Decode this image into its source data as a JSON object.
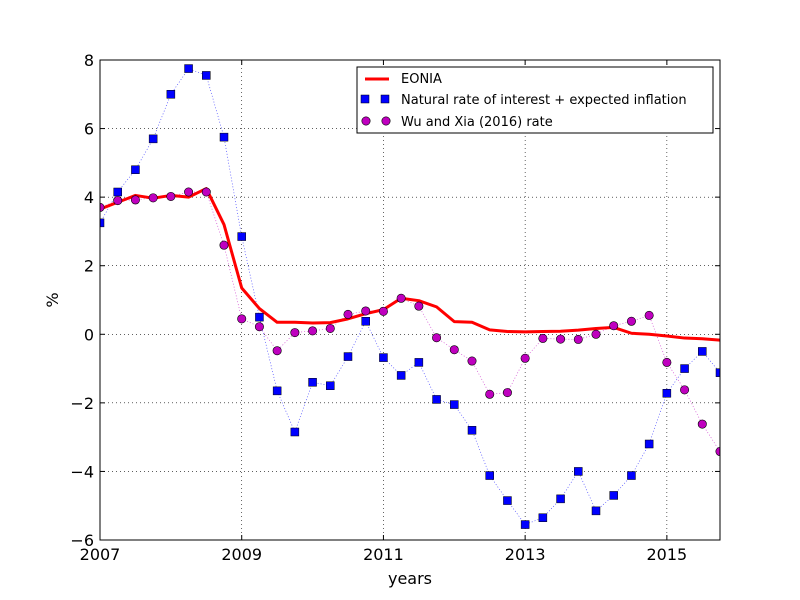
{
  "chart_data": {
    "type": "line",
    "title": "",
    "xlabel": "years",
    "ylabel": "%",
    "xlim": [
      2007,
      2015.75
    ],
    "ylim": [
      -6,
      8
    ],
    "grid": true,
    "x_ticks": [
      2007,
      2009,
      2011,
      2013,
      2015
    ],
    "x_tick_labels": [
      "2007",
      "2009",
      "2011",
      "2013",
      "2015"
    ],
    "y_ticks": [
      -6,
      -4,
      -2,
      0,
      2,
      4,
      6,
      8
    ],
    "y_tick_labels": [
      "−6",
      "−4",
      "−2",
      "0",
      "2",
      "4",
      "6",
      "8"
    ],
    "legend_position": "top-right",
    "series": [
      {
        "name": "EONIA",
        "style": "line",
        "color": "#ff0000",
        "x": [
          2007,
          2007.25,
          2007.5,
          2007.75,
          2008,
          2008.25,
          2008.5,
          2008.75,
          2009,
          2009.25,
          2009.5,
          2009.75,
          2010,
          2010.25,
          2010.5,
          2010.75,
          2011,
          2011.25,
          2011.5,
          2011.75,
          2012,
          2012.25,
          2012.5,
          2012.75,
          2013,
          2013.25,
          2013.5,
          2013.75,
          2014,
          2014.25,
          2014.5,
          2014.75,
          2015,
          2015.25,
          2015.5,
          2015.75
        ],
        "values": [
          3.65,
          3.85,
          4.05,
          3.97,
          4.05,
          4.0,
          4.25,
          3.2,
          1.35,
          0.75,
          0.35,
          0.35,
          0.33,
          0.34,
          0.45,
          0.6,
          0.72,
          1.05,
          0.98,
          0.8,
          0.37,
          0.35,
          0.13,
          0.08,
          0.07,
          0.08,
          0.09,
          0.12,
          0.17,
          0.2,
          0.03,
          0.0,
          -0.05,
          -0.11,
          -0.13,
          -0.17
        ]
      },
      {
        "name": "Natural rate of interest + expected inflation",
        "style": "square-markers",
        "color": "#0000ff",
        "x": [
          2007,
          2007.25,
          2007.5,
          2007.75,
          2008,
          2008.25,
          2008.5,
          2008.75,
          2009,
          2009.25,
          2009.5,
          2009.75,
          2010,
          2010.25,
          2010.5,
          2010.75,
          2011,
          2011.25,
          2011.5,
          2011.75,
          2012,
          2012.25,
          2012.5,
          2012.75,
          2013,
          2013.25,
          2013.5,
          2013.75,
          2014,
          2014.25,
          2014.5,
          2014.75,
          2015,
          2015.25,
          2015.5,
          2015.75
        ],
        "values": [
          3.25,
          4.15,
          4.8,
          5.7,
          7.0,
          7.75,
          7.55,
          5.75,
          2.85,
          0.5,
          -1.65,
          -2.85,
          -1.4,
          -1.5,
          -0.65,
          0.38,
          -0.68,
          -1.2,
          -0.82,
          -1.9,
          -2.05,
          -2.8,
          -4.12,
          -4.85,
          -5.55,
          -5.35,
          -4.8,
          -4.0,
          -5.15,
          -4.7,
          -4.12,
          -3.2,
          -1.72,
          -1.0,
          -0.5,
          -1.12
        ]
      },
      {
        "name": "Wu and Xia (2016) rate",
        "style": "circle-markers",
        "color": "#bf00bf",
        "x": [
          2007,
          2007.25,
          2007.5,
          2007.75,
          2008,
          2008.25,
          2008.5,
          2008.75,
          2009,
          2009.25,
          2009.5,
          2009.75,
          2010,
          2010.25,
          2010.5,
          2010.75,
          2011,
          2011.25,
          2011.5,
          2011.75,
          2012,
          2012.25,
          2012.5,
          2012.75,
          2013,
          2013.25,
          2013.5,
          2013.75,
          2014,
          2014.25,
          2014.5,
          2014.75,
          2015,
          2015.25,
          2015.5,
          2015.75
        ],
        "values": [
          3.7,
          3.9,
          3.92,
          3.98,
          4.02,
          4.15,
          4.15,
          2.6,
          0.45,
          0.22,
          -0.48,
          0.05,
          0.1,
          0.17,
          0.58,
          0.68,
          0.67,
          1.05,
          0.82,
          -0.1,
          -0.45,
          -0.78,
          -1.75,
          -1.7,
          -0.7,
          -0.12,
          -0.14,
          -0.15,
          0.0,
          0.25,
          0.38,
          0.55,
          -0.82,
          -1.62,
          -2.62,
          -3.42
        ]
      }
    ]
  }
}
